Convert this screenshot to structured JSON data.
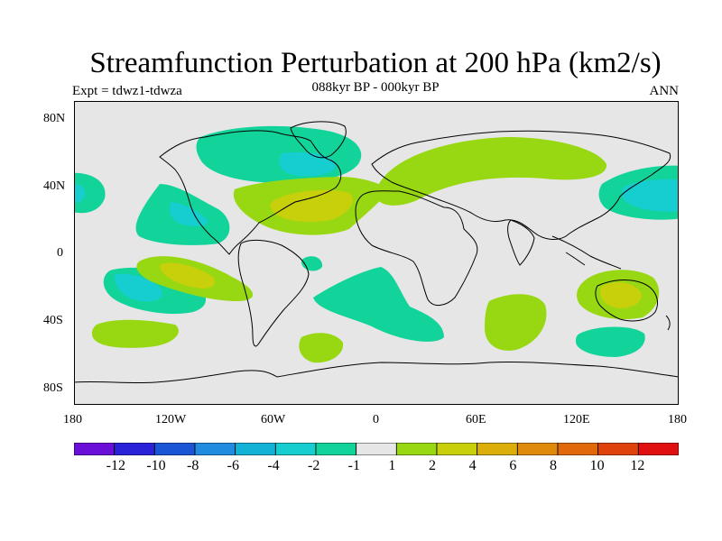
{
  "title": "Streamfunction Perturbation at 200 hPa (km2/s)",
  "subtitle": "088kyr BP - 000kyr BP",
  "left_string": "Expt = tdwz1-tdwza",
  "right_string": "ANN",
  "map": {
    "projection": "cylindrical equidistant",
    "lon_range": [
      -180,
      180
    ],
    "lat_range": [
      -90,
      90
    ],
    "lat_tick_labels": [
      "80N",
      "40N",
      "0",
      "40S",
      "80S"
    ],
    "lon_tick_labels": [
      "180",
      "120W",
      "60W",
      "0",
      "60E",
      "120E",
      "180"
    ],
    "background_color": "#e6e6e6",
    "coastline_color": "#000000"
  },
  "legend": {
    "colors": [
      "#6a0fd8",
      "#2a22d8",
      "#1a55d6",
      "#1f8ce0",
      "#12b2d6",
      "#16cdd0",
      "#12d49a",
      "#e6e6e6",
      "#98d812",
      "#c8d00c",
      "#dcae0a",
      "#df8a0a",
      "#e06a0a",
      "#e0420c",
      "#e01010"
    ],
    "labels": [
      "-12",
      "-10",
      "-8",
      "-6",
      "-4",
      "-2",
      "-1",
      "1",
      "2",
      "4",
      "6",
      "8",
      "10",
      "12"
    ]
  }
}
